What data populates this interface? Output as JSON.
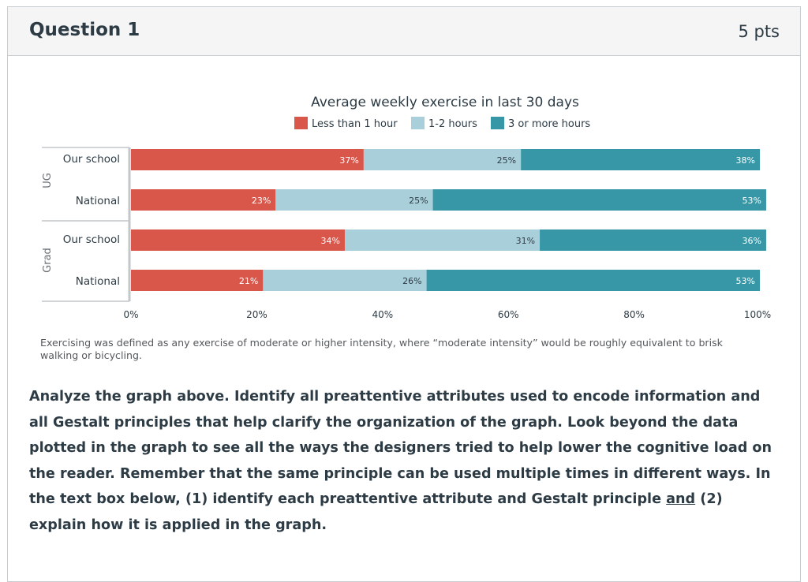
{
  "question": {
    "title": "Question 1",
    "points": "5 pts"
  },
  "colors": {
    "less_than_1h": "#d9564b",
    "one_to_two_h": "#a9d0da",
    "three_plus_h": "#3797a6",
    "axis_line": "#c2c7ca",
    "text": "#2d3b45"
  },
  "chart_data": {
    "type": "bar",
    "orientation": "horizontal",
    "stacked": true,
    "title": "Average weekly exercise in last 30 days",
    "groups": [
      "UG",
      "Grad"
    ],
    "categories": [
      "Our school",
      "National",
      "Our school",
      "National"
    ],
    "category_groups": [
      "UG",
      "UG",
      "Grad",
      "Grad"
    ],
    "series": [
      {
        "name": "Less than 1 hour",
        "color": "#d9564b",
        "values": [
          37,
          23,
          34,
          21
        ],
        "labels": [
          "37%",
          "23%",
          "34%",
          "21%"
        ]
      },
      {
        "name": "1-2 hours",
        "color": "#a9d0da",
        "values": [
          25,
          25,
          31,
          26
        ],
        "labels": [
          "25%",
          "25%",
          "31%",
          "26%"
        ]
      },
      {
        "name": "3 or more hours",
        "color": "#3797a6",
        "values": [
          38,
          53,
          36,
          53
        ],
        "labels": [
          "38%",
          "53%",
          "36%",
          "53%"
        ]
      }
    ],
    "x_ticks": [
      "0%",
      "20%",
      "40%",
      "60%",
      "80%",
      "100%"
    ],
    "xlim": [
      0,
      100
    ],
    "legend_position": "top",
    "grid": false,
    "footnote": "Exercising was defined as any exercise of moderate or higher intensity, where “moderate intensity” would be roughly equivalent to brisk walking or bicycling."
  },
  "prompt": {
    "before": "Analyze the graph above. Identify all preattentive attributes used to encode information and all Gestalt principles that help clarify the organization of the graph. Look beyond the data plotted in the graph to see all the ways the designers tried to help lower the cognitive load on the reader. Remember that the same principle can be used multiple times in different ways. In the text box below, (1) identify each preattentive attribute and Gestalt principle ",
    "underlined": "and",
    "after": " (2) explain how it is applied in the graph."
  }
}
